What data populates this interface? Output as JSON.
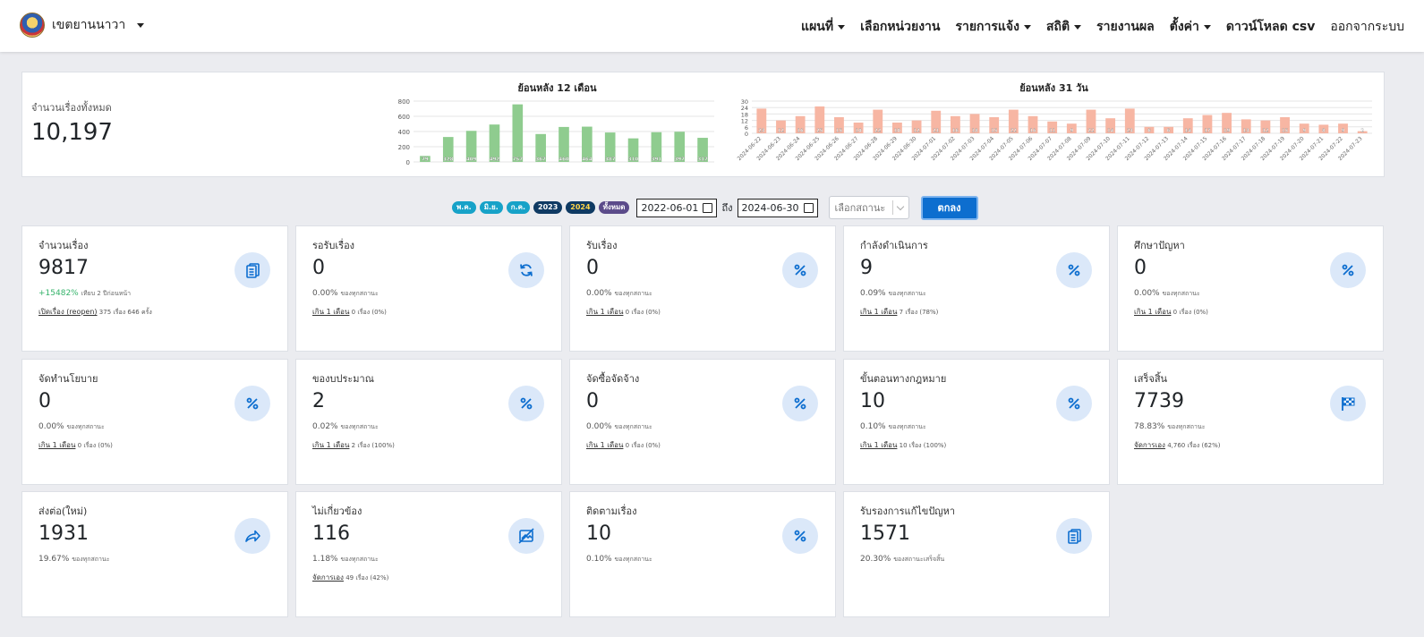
{
  "navbar": {
    "brand": "เขตยานนาวา",
    "menu": [
      {
        "label": "แผนที่",
        "dropdown": true,
        "bold": true
      },
      {
        "label": "เลือกหน่วยงาน",
        "dropdown": false,
        "bold": true
      },
      {
        "label": "รายการแจ้ง",
        "dropdown": true,
        "bold": true
      },
      {
        "label": "สถิติ",
        "dropdown": true,
        "bold": true
      },
      {
        "label": "รายงานผล",
        "dropdown": false,
        "bold": true
      },
      {
        "label": "ตั้งค่า",
        "dropdown": true,
        "bold": true
      },
      {
        "label": "ดาวน์โหลด csv",
        "dropdown": false,
        "bold": true
      },
      {
        "label": "ออกจากระบบ",
        "dropdown": false,
        "bold": false
      }
    ]
  },
  "summary": {
    "total_label": "จำนวนเรื่องทั้งหมด",
    "total_value": "10,197"
  },
  "chart_data": [
    {
      "type": "bar",
      "title": "ย้อนหลัง 12 เดือน",
      "ylim": [
        0,
        800
      ],
      "yticks": [
        0,
        200,
        400,
        600,
        800
      ],
      "values": [
        79,
        328,
        409,
        492,
        757,
        367,
        460,
        464,
        387,
        310,
        391,
        397,
        317
      ],
      "color": "#8fcc8f",
      "grid": true
    },
    {
      "type": "bar",
      "title": "ย้อนหลัง 31 วัน",
      "ylim": [
        0,
        30
      ],
      "yticks": [
        0,
        6,
        12,
        18,
        24,
        30
      ],
      "categories": [
        "2024-06-22",
        "2024-06-23",
        "2024-06-24",
        "2024-06-25",
        "2024-06-26",
        "2024-06-27",
        "2024-06-28",
        "2024-06-29",
        "2024-06-30",
        "2024-07-01",
        "2024-07-02",
        "2024-07-03",
        "2024-07-04",
        "2024-07-05",
        "2024-07-06",
        "2024-07-07",
        "2024-07-08",
        "2024-07-09",
        "2024-07-10",
        "2024-07-11",
        "2024-07-12",
        "2024-07-13",
        "2024-07-14",
        "2024-07-15",
        "2024-07-16",
        "2024-07-17",
        "2024-07-18",
        "2024-07-19",
        "2024-07-20",
        "2024-07-21",
        "2024-07-22",
        "2024-07-23"
      ],
      "values": [
        23,
        12,
        16,
        25,
        15,
        10,
        22,
        10,
        12,
        21,
        16,
        18,
        15,
        22,
        16,
        11,
        9,
        22,
        14,
        23,
        6,
        6,
        14,
        17,
        19,
        13,
        12,
        15,
        9,
        8,
        9,
        2
      ],
      "color": "#f7b6a3",
      "grid": true
    }
  ],
  "filters": {
    "pills": [
      "พ.ค.",
      "มิ.ย.",
      "ก.ค.",
      "2023",
      "2024",
      "ทั้งหมด"
    ],
    "date_from": "2022-06-01",
    "to_label": "ถึง",
    "date_to": "2024-06-30",
    "status_placeholder": "เลือกสถานะ",
    "ok_label": "ตกลง"
  },
  "cards": [
    {
      "title": "จำนวนเรื่อง",
      "value": "9817",
      "icon": "document-stack-icon",
      "line1_green": "+15482%",
      "line1": "เทียบ 2 ปีก่อนหน้า",
      "line2_link": "เปิดเรื่อง (reopen)",
      "line2": "375 เรื่อง 646 ครั้ง"
    },
    {
      "title": "รอรับเรื่อง",
      "value": "0",
      "icon": "refresh-icon",
      "line1": "0.00%",
      "line1_small": "ของทุกสถานะ",
      "line2_link": "เกิน 1 เดือน",
      "line2": "0 เรื่อง (0%)"
    },
    {
      "title": "รับเรื่อง",
      "value": "0",
      "icon": "percent-icon",
      "line1": "0.00%",
      "line1_small": "ของทุกสถานะ",
      "line2_link": "เกิน 1 เดือน",
      "line2": "0 เรื่อง (0%)"
    },
    {
      "title": "กำลังดำเนินการ",
      "value": "9",
      "icon": "percent-icon",
      "line1": "0.09%",
      "line1_small": "ของทุกสถานะ",
      "line2_link": "เกิน 1 เดือน",
      "line2": "7 เรื่อง (78%)"
    },
    {
      "title": "ศึกษาปัญหา",
      "value": "0",
      "icon": "percent-icon",
      "line1": "0.00%",
      "line1_small": "ของทุกสถานะ",
      "line2_link": "เกิน 1 เดือน",
      "line2": "0 เรื่อง (0%)"
    },
    {
      "title": "จัดทำนโยบาย",
      "value": "0",
      "icon": "percent-icon",
      "line1": "0.00%",
      "line1_small": "ของทุกสถานะ",
      "line2_link": "เกิน 1 เดือน",
      "line2": "0 เรื่อง (0%)"
    },
    {
      "title": "ของบประมาณ",
      "value": "2",
      "icon": "percent-icon",
      "line1": "0.02%",
      "line1_small": "ของทุกสถานะ",
      "line2_link": "เกิน 1 เดือน",
      "line2": "2 เรื่อง (100%)"
    },
    {
      "title": "จัดซื้อจัดจ้าง",
      "value": "0",
      "icon": "percent-icon",
      "line1": "0.00%",
      "line1_small": "ของทุกสถานะ",
      "line2_link": "เกิน 1 เดือน",
      "line2": "0 เรื่อง (0%)"
    },
    {
      "title": "ขั้นตอนทางกฎหมาย",
      "value": "10",
      "icon": "percent-icon",
      "line1": "0.10%",
      "line1_small": "ของทุกสถานะ",
      "line2_link": "เกิน 1 เดือน",
      "line2": "10 เรื่อง (100%)"
    },
    {
      "title": "เสร็จสิ้น",
      "value": "7739",
      "icon": "checkered-flag-icon",
      "line1": "78.83%",
      "line1_small": "ของทุกสถานะ",
      "line2_link": "จัดการเอง",
      "line2": "4,760 เรื่อง (62%)"
    },
    {
      "title": "ส่งต่อ(ใหม่)",
      "value": "1931",
      "icon": "share-arrow-icon",
      "line1": "19.67%",
      "line1_small": "ของทุกสถานะ",
      "line2_link": "",
      "line2": ""
    },
    {
      "title": "ไม่เกี่ยวข้อง",
      "value": "116",
      "icon": "no-image-icon",
      "line1": "1.18%",
      "line1_small": "ของทุกสถานะ",
      "line2_link": "จัดการเอง",
      "line2": "49 เรื่อง (42%)"
    },
    {
      "title": "ติดตามเรื่อง",
      "value": "10",
      "icon": "percent-icon",
      "line1": "0.10%",
      "line1_small": "ของทุกสถานะ",
      "line2_link": "",
      "line2": ""
    },
    {
      "title": "รับรองการแก้ไขปัญหา",
      "value": "1571",
      "icon": "document-stack-icon",
      "line1": "20.30%",
      "line1_small": "ของสถานะเสร็จสิ้น",
      "line2_link": "",
      "line2": ""
    }
  ]
}
